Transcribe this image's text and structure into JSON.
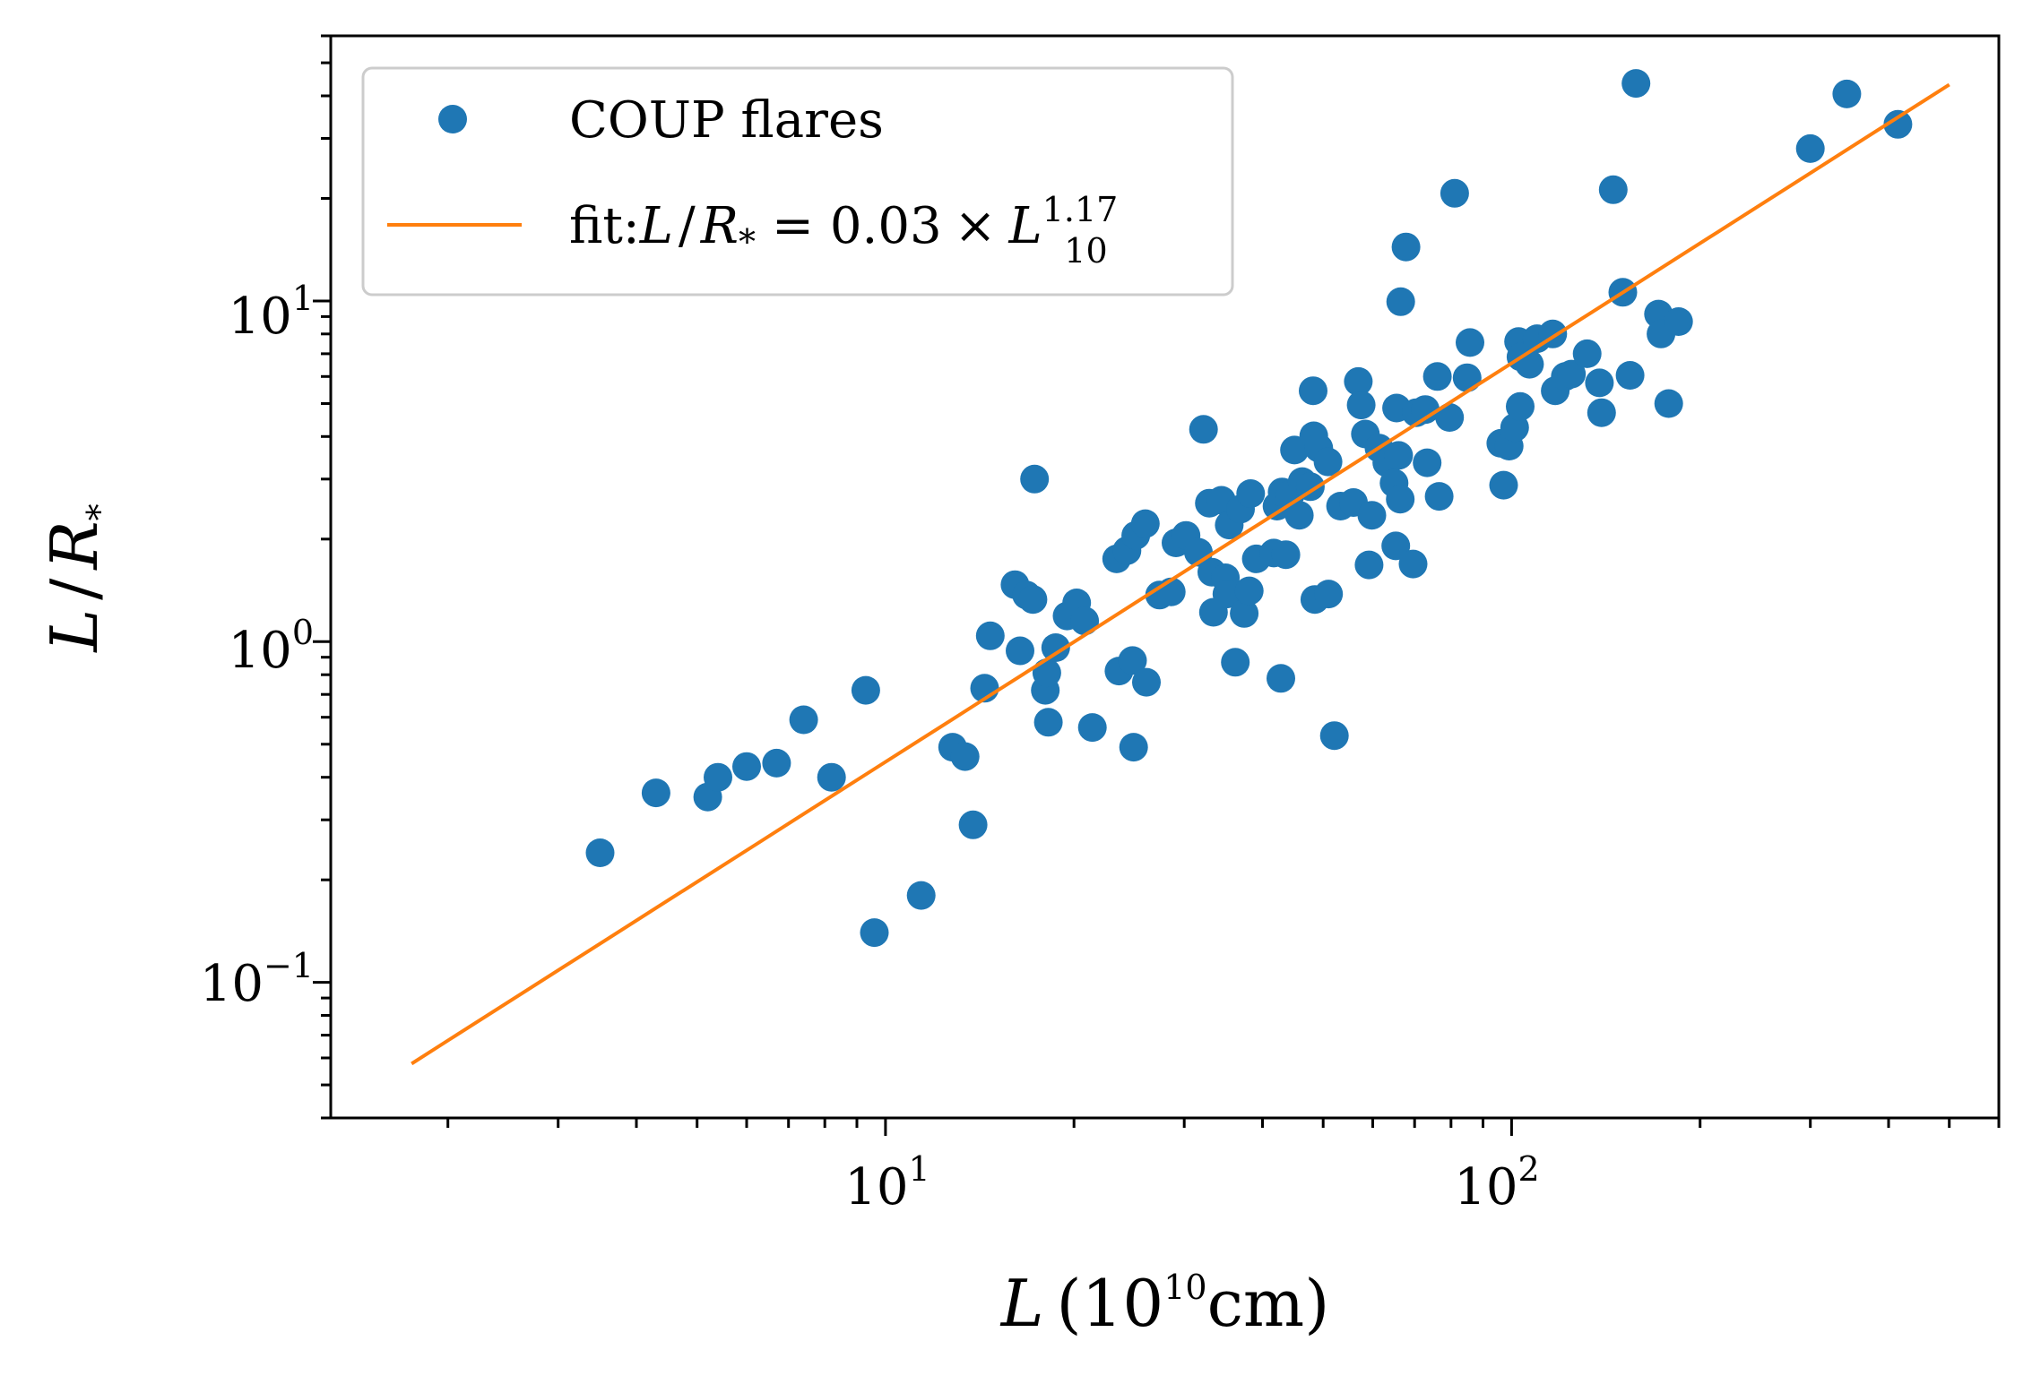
{
  "chart_data": {
    "type": "scatter",
    "title": "",
    "xscale": "log",
    "yscale": "log",
    "xlim": [
      1.3,
      600
    ],
    "ylim": [
      0.04,
      60
    ],
    "x_ticks": [
      {
        "value": 10,
        "base": "10",
        "exp": "1"
      },
      {
        "value": 100,
        "base": "10",
        "exp": "2"
      }
    ],
    "y_ticks": [
      {
        "value": 0.1,
        "base": "10",
        "exp": "−1"
      },
      {
        "value": 1,
        "base": "10",
        "exp": "0"
      },
      {
        "value": 10,
        "base": "10",
        "exp": "1"
      }
    ],
    "xlabel": {
      "var": "L",
      "open": "(",
      "base": "10",
      "exp": "10",
      "unit": "cm",
      "close": ")"
    },
    "ylabel": {
      "var": "L",
      "sep": "/",
      "var2": "R",
      "sub": "*"
    },
    "legend": {
      "position": "upper-left",
      "scatter_label": "COUP flares",
      "fit_label": {
        "prefix": "fit:",
        "var": "L",
        "sep": "/",
        "var2": "R",
        "sub": "*",
        "eq": "=",
        "coef": "0.03",
        "times": "×",
        "var3": "L",
        "exp": "1.17",
        "subscript": "10"
      }
    },
    "colors": {
      "scatter": "#1f77b4",
      "fit": "#ff7f0e"
    },
    "fit": {
      "coef": 0.03,
      "exponent": 1.17,
      "x_range": [
        1.75,
        500
      ]
    },
    "series": [
      {
        "name": "COUP flares",
        "points": [
          [
            3.5,
            0.24
          ],
          [
            4.3,
            0.36
          ],
          [
            5.2,
            0.35
          ],
          [
            5.4,
            0.4
          ],
          [
            6.0,
            0.43
          ],
          [
            6.7,
            0.44
          ],
          [
            7.4,
            0.59
          ],
          [
            8.2,
            0.4
          ],
          [
            9.3,
            0.72
          ],
          [
            9.6,
            0.14
          ],
          [
            11.4,
            0.18
          ],
          [
            12.8,
            0.49
          ],
          [
            13.4,
            0.46
          ],
          [
            13.8,
            0.29
          ],
          [
            14.4,
            0.73
          ],
          [
            14.7,
            1.04
          ],
          [
            16.1,
            1.47
          ],
          [
            16.4,
            0.94
          ],
          [
            16.8,
            1.37
          ],
          [
            17.2,
            1.33
          ],
          [
            17.3,
            3.0
          ],
          [
            18.0,
            0.72
          ],
          [
            18.1,
            0.81
          ],
          [
            18.2,
            0.58
          ],
          [
            18.7,
            0.96
          ],
          [
            19.5,
            1.19
          ],
          [
            20.2,
            1.3
          ],
          [
            20.8,
            1.15
          ],
          [
            21.4,
            0.56
          ],
          [
            23.4,
            1.75
          ],
          [
            23.6,
            0.82
          ],
          [
            24.3,
            1.85
          ],
          [
            24.8,
            0.88
          ],
          [
            24.9,
            0.49
          ],
          [
            25.1,
            2.05
          ],
          [
            26.0,
            2.22
          ],
          [
            26.1,
            0.76
          ],
          [
            27.4,
            1.37
          ],
          [
            28.6,
            1.4
          ],
          [
            29.1,
            1.95
          ],
          [
            30.2,
            2.05
          ],
          [
            31.6,
            1.83
          ],
          [
            32.2,
            4.2
          ],
          [
            32.9,
            2.55
          ],
          [
            33.2,
            1.6
          ],
          [
            33.4,
            1.22
          ],
          [
            34.4,
            2.6
          ],
          [
            34.9,
            1.54
          ],
          [
            35.1,
            1.38
          ],
          [
            35.4,
            2.2
          ],
          [
            36.2,
            0.87
          ],
          [
            36.9,
            2.45
          ],
          [
            37.4,
            1.21
          ],
          [
            38.1,
            1.41
          ],
          [
            38.3,
            2.72
          ],
          [
            39.1,
            1.75
          ],
          [
            41.7,
            1.82
          ],
          [
            42.2,
            2.5
          ],
          [
            42.8,
            0.78
          ],
          [
            43.0,
            2.75
          ],
          [
            43.6,
            1.8
          ],
          [
            44.3,
            2.7
          ],
          [
            45.0,
            3.65
          ],
          [
            45.8,
            2.35
          ],
          [
            46.3,
            2.95
          ],
          [
            47.7,
            2.85
          ],
          [
            48.2,
            5.45
          ],
          [
            48.3,
            4.02
          ],
          [
            48.5,
            1.33
          ],
          [
            49.2,
            3.7
          ],
          [
            50.9,
            3.37
          ],
          [
            51.0,
            1.38
          ],
          [
            52.1,
            0.53
          ],
          [
            53.3,
            2.5
          ],
          [
            55.9,
            2.56
          ],
          [
            56.9,
            5.8
          ],
          [
            57.5,
            4.95
          ],
          [
            58.4,
            4.07
          ],
          [
            59.2,
            1.68
          ],
          [
            59.8,
            2.35
          ],
          [
            61.4,
            3.7
          ],
          [
            63.2,
            3.35
          ],
          [
            64.9,
            2.92
          ],
          [
            65.3,
            1.91
          ],
          [
            65.5,
            4.85
          ],
          [
            66.0,
            3.52
          ],
          [
            66.4,
            2.62
          ],
          [
            66.5,
            9.95
          ],
          [
            67.8,
            14.4
          ],
          [
            69.6,
            1.69
          ],
          [
            70.4,
            4.7
          ],
          [
            72.8,
            4.8
          ],
          [
            73.3,
            3.35
          ],
          [
            76.1,
            6.0
          ],
          [
            76.6,
            2.67
          ],
          [
            79.6,
            4.55
          ],
          [
            81.1,
            20.7
          ],
          [
            84.9,
            5.95
          ],
          [
            85.8,
            7.55
          ],
          [
            96.1,
            3.82
          ],
          [
            97.1,
            2.88
          ],
          [
            99.1,
            3.75
          ],
          [
            101.1,
            4.25
          ],
          [
            102.6,
            7.6
          ],
          [
            103.2,
            4.9
          ],
          [
            103.5,
            6.85
          ],
          [
            106.8,
            6.52
          ],
          [
            109.8,
            7.75
          ],
          [
            116.3,
            8.0
          ],
          [
            117.4,
            5.45
          ],
          [
            121.8,
            6.0
          ],
          [
            124.6,
            6.1
          ],
          [
            132.0,
            7.0
          ],
          [
            138.1,
            5.75
          ],
          [
            139.2,
            4.7
          ],
          [
            145.3,
            21.2
          ],
          [
            150.5,
            10.6
          ],
          [
            154.6,
            6.05
          ],
          [
            158.0,
            43.5
          ],
          [
            171.6,
            9.15
          ],
          [
            173.2,
            8.0
          ],
          [
            178.2,
            5.0
          ],
          [
            184.8,
            8.7
          ],
          [
            300.0,
            28.0
          ],
          [
            343.0,
            40.5
          ],
          [
            414.0,
            33.0
          ]
        ]
      }
    ]
  }
}
